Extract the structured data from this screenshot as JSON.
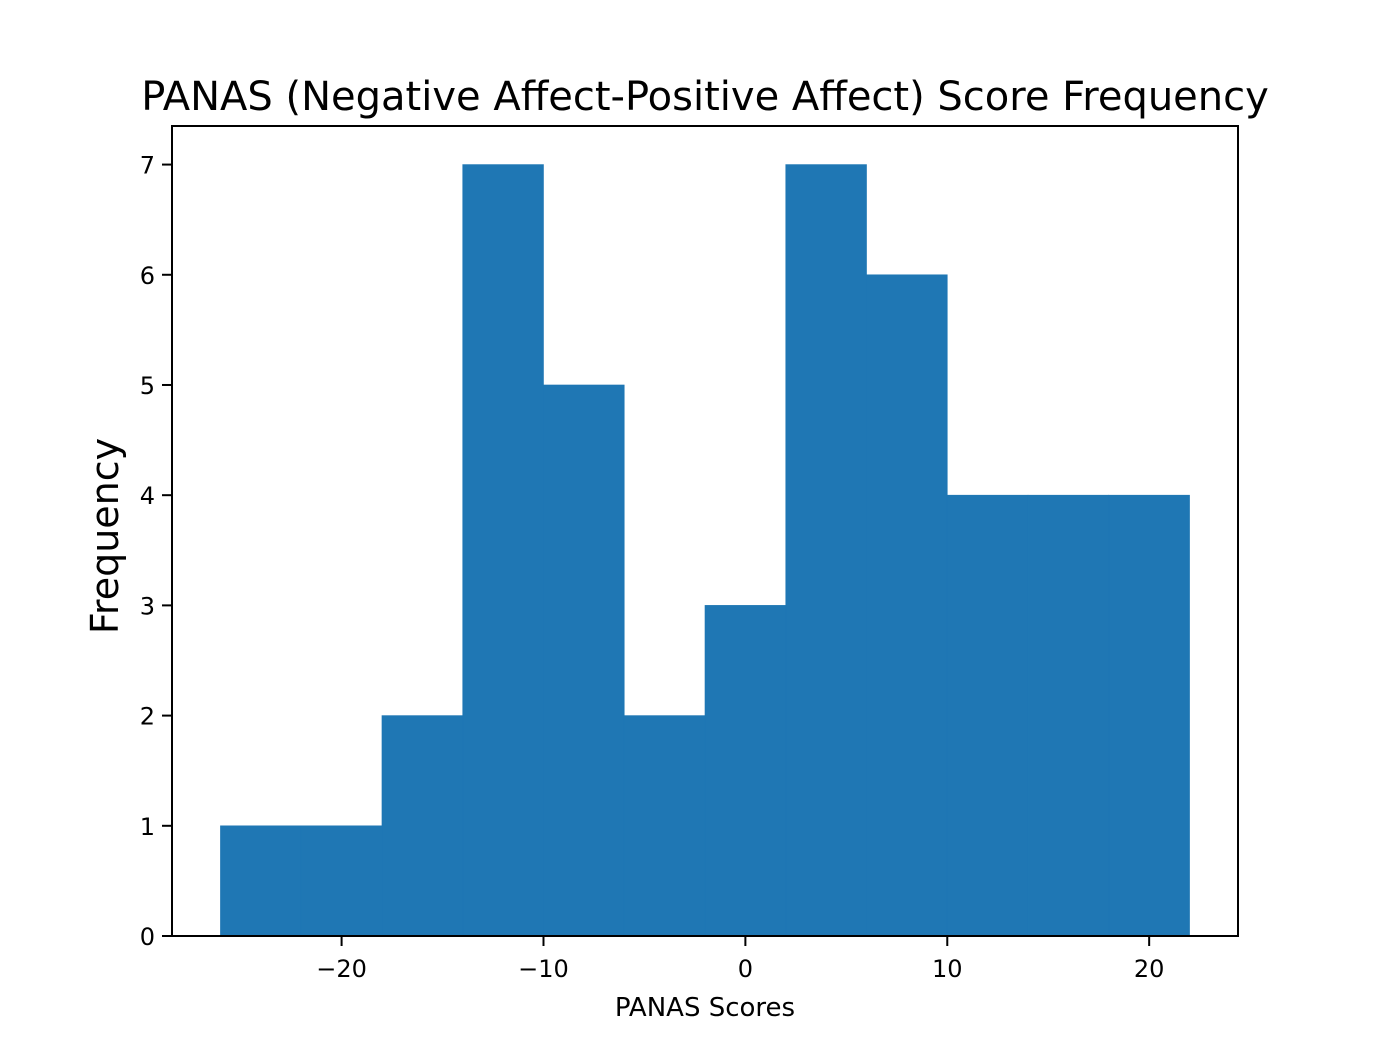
{
  "chart_data": {
    "type": "bar",
    "subtype": "histogram",
    "title": "PANAS (Negative Affect-Positive Affect) Score Frequency",
    "xlabel": "PANAS Scores",
    "ylabel": "Frequency",
    "bin_edges": [
      -26,
      -22,
      -18,
      -14,
      -10,
      -6,
      -2,
      2,
      6,
      10,
      14,
      18,
      22
    ],
    "values": [
      1,
      1,
      2,
      7,
      5,
      2,
      3,
      7,
      6,
      4,
      4,
      4
    ],
    "xlim": [
      -28.4,
      24.4
    ],
    "ylim": [
      0,
      7.35
    ],
    "xticks": [
      -20,
      -10,
      0,
      10,
      20
    ],
    "xtick_labels": [
      "−20",
      "−10",
      "0",
      "10",
      "20"
    ],
    "yticks": [
      0,
      1,
      2,
      3,
      4,
      5,
      6,
      7
    ],
    "ytick_labels": [
      "0",
      "1",
      "2",
      "3",
      "4",
      "5",
      "6",
      "7"
    ],
    "bar_color": "#1f77b4",
    "grid": false,
    "legend": "none"
  }
}
